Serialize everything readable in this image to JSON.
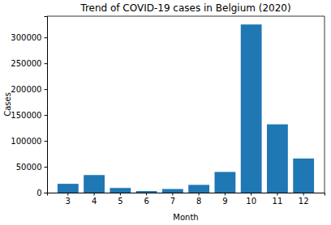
{
  "chart_data": {
    "type": "bar",
    "title": "Trend of COVID-19 cases in Belgium (2020)",
    "x_label": "Month",
    "y_label": "Cases",
    "categories": [
      "3",
      "4",
      "5",
      "6",
      "7",
      "8",
      "9",
      "10",
      "11",
      "12"
    ],
    "values": [
      17000,
      34000,
      9000,
      3000,
      7000,
      15000,
      40000,
      325000,
      132000,
      66000
    ],
    "color": "#1f77b4",
    "ylim": [
      0,
      341000
    ],
    "yticks": [
      0,
      50000,
      100000,
      150000,
      200000,
      250000,
      300000
    ],
    "grid": false
  }
}
